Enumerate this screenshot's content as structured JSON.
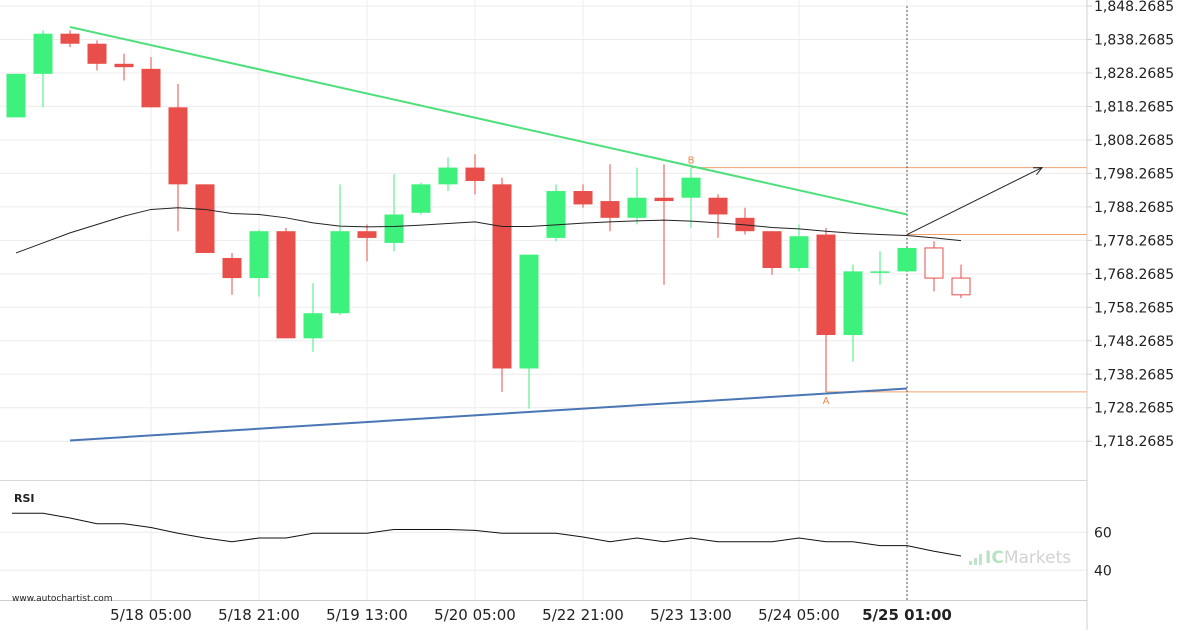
{
  "chart_data": {
    "type": "candlestick",
    "grid": true,
    "price_axis": {
      "range": [
        1710.2685,
        1848.2685
      ],
      "tick_labels": [
        "1,848.2685",
        "1,838.2685",
        "1,828.2685",
        "1,818.2685",
        "1,808.2685",
        "1,798.2685",
        "1,788.2685",
        "1,778.2685",
        "1,768.2685",
        "1,758.2685",
        "1,748.2685",
        "1,738.2685",
        "1,728.2685",
        "1,718.2685"
      ]
    },
    "time_axis": {
      "tick_labels": [
        {
          "label": "5/18 05:00",
          "index": 5
        },
        {
          "label": "5/18 21:00",
          "index": 9
        },
        {
          "label": "5/19 13:00",
          "index": 13
        },
        {
          "label": "5/20 05:00",
          "index": 17
        },
        {
          "label": "5/22 21:00",
          "index": 21
        },
        {
          "label": "5/23 13:00",
          "index": 25
        },
        {
          "label": "5/24 05:00",
          "index": 29
        },
        {
          "label": "5/25 01:00",
          "index": 33,
          "bold": true
        }
      ]
    },
    "current_bar_index": 33,
    "candles": [
      {
        "o": 1815.0,
        "h": 1828.0,
        "l": 1815.0,
        "c": 1828.0,
        "state": "final"
      },
      {
        "o": 1828.0,
        "h": 1841.0,
        "l": 1818.0,
        "c": 1840.0,
        "state": "final"
      },
      {
        "o": 1840.0,
        "h": 1841.0,
        "l": 1836.0,
        "c": 1837.0,
        "state": "final"
      },
      {
        "o": 1837.0,
        "h": 1838.0,
        "l": 1829.0,
        "c": 1831.0,
        "state": "final"
      },
      {
        "o": 1831.0,
        "h": 1834.0,
        "l": 1826.0,
        "c": 1830.0,
        "state": "final"
      },
      {
        "o": 1829.5,
        "h": 1833.0,
        "l": 1818.0,
        "c": 1818.0,
        "state": "final"
      },
      {
        "o": 1818.0,
        "h": 1825.0,
        "l": 1781.0,
        "c": 1795.0,
        "state": "final"
      },
      {
        "o": 1795.0,
        "h": 1795.0,
        "l": 1775.0,
        "c": 1774.5,
        "state": "final"
      },
      {
        "o": 1773.0,
        "h": 1774.5,
        "l": 1762.0,
        "c": 1767.0,
        "state": "final"
      },
      {
        "o": 1767.0,
        "h": 1781.5,
        "l": 1761.5,
        "c": 1781.0,
        "state": "final"
      },
      {
        "o": 1781.0,
        "h": 1782.0,
        "l": 1749.0,
        "c": 1749.0,
        "state": "final"
      },
      {
        "o": 1749.0,
        "h": 1765.5,
        "l": 1745.0,
        "c": 1756.5,
        "state": "final"
      },
      {
        "o": 1756.5,
        "h": 1795.0,
        "l": 1756.0,
        "c": 1781.0,
        "state": "final"
      },
      {
        "o": 1781.0,
        "h": 1783.0,
        "l": 1772.0,
        "c": 1779.0,
        "state": "final"
      },
      {
        "o": 1777.5,
        "h": 1798.0,
        "l": 1775.0,
        "c": 1786.0,
        "state": "final"
      },
      {
        "o": 1786.5,
        "h": 1795.5,
        "l": 1786.0,
        "c": 1795.0,
        "state": "final"
      },
      {
        "o": 1795.0,
        "h": 1803.0,
        "l": 1793.0,
        "c": 1800.0,
        "state": "final"
      },
      {
        "o": 1800.0,
        "h": 1804.0,
        "l": 1792.0,
        "c": 1796.0,
        "state": "final"
      },
      {
        "o": 1795.0,
        "h": 1797.0,
        "l": 1733.0,
        "c": 1740.0,
        "state": "final"
      },
      {
        "o": 1740.0,
        "h": 1774.0,
        "l": 1728.0,
        "c": 1774.0,
        "state": "final"
      },
      {
        "o": 1779.0,
        "h": 1795.0,
        "l": 1778.0,
        "c": 1793.0,
        "state": "final"
      },
      {
        "o": 1793.0,
        "h": 1795.0,
        "l": 1788.0,
        "c": 1789.0,
        "state": "final"
      },
      {
        "o": 1790.0,
        "h": 1801.0,
        "l": 1781.0,
        "c": 1785.0,
        "state": "final"
      },
      {
        "o": 1785.0,
        "h": 1800.0,
        "l": 1783.0,
        "c": 1791.0,
        "state": "final"
      },
      {
        "o": 1791.0,
        "h": 1801.0,
        "l": 1765.0,
        "c": 1790.0,
        "state": "final"
      },
      {
        "o": 1791.0,
        "h": 1800.0,
        "l": 1782.0,
        "c": 1797.0,
        "state": "final"
      },
      {
        "o": 1791.0,
        "h": 1792.0,
        "l": 1779.0,
        "c": 1786.0,
        "state": "final"
      },
      {
        "o": 1785.0,
        "h": 1788.0,
        "l": 1780.0,
        "c": 1781.0,
        "state": "final"
      },
      {
        "o": 1781.0,
        "h": 1781.0,
        "l": 1768.0,
        "c": 1770.0,
        "state": "final"
      },
      {
        "o": 1770.0,
        "h": 1783.0,
        "l": 1769.0,
        "c": 1779.5,
        "state": "final"
      },
      {
        "o": 1780.0,
        "h": 1782.0,
        "l": 1733.0,
        "c": 1750.0,
        "state": "final"
      },
      {
        "o": 1750.0,
        "h": 1771.0,
        "l": 1742.0,
        "c": 1769.0,
        "state": "final"
      },
      {
        "o": 1769.0,
        "h": 1775.0,
        "l": 1765.0,
        "c": 1769.0,
        "state": "final"
      },
      {
        "o": 1769.0,
        "h": 1776.0,
        "l": 1769.0,
        "c": 1776.0,
        "state": "final"
      },
      {
        "o": 1776.0,
        "h": 1778.0,
        "l": 1763.0,
        "c": 1767.0,
        "state": "projected"
      },
      {
        "o": 1767.0,
        "h": 1771.0,
        "l": 1761.0,
        "c": 1762.0,
        "state": "projected"
      }
    ],
    "moving_average": [
      {
        "i": 0,
        "v": 1774.5
      },
      {
        "i": 1,
        "v": 1777.5
      },
      {
        "i": 2,
        "v": 1780.5
      },
      {
        "i": 3,
        "v": 1783.0
      },
      {
        "i": 4,
        "v": 1785.5
      },
      {
        "i": 5,
        "v": 1787.5
      },
      {
        "i": 6,
        "v": 1788.0
      },
      {
        "i": 7,
        "v": 1787.5
      },
      {
        "i": 8,
        "v": 1786.3
      },
      {
        "i": 9,
        "v": 1786.0
      },
      {
        "i": 10,
        "v": 1785.0
      },
      {
        "i": 11,
        "v": 1783.5
      },
      {
        "i": 12,
        "v": 1782.5
      },
      {
        "i": 13,
        "v": 1782.3
      },
      {
        "i": 14,
        "v": 1782.4
      },
      {
        "i": 15,
        "v": 1782.8
      },
      {
        "i": 16,
        "v": 1783.3
      },
      {
        "i": 17,
        "v": 1783.8
      },
      {
        "i": 18,
        "v": 1782.4
      },
      {
        "i": 19,
        "v": 1782.4
      },
      {
        "i": 20,
        "v": 1782.9
      },
      {
        "i": 21,
        "v": 1783.4
      },
      {
        "i": 22,
        "v": 1783.8
      },
      {
        "i": 23,
        "v": 1784.1
      },
      {
        "i": 24,
        "v": 1784.3
      },
      {
        "i": 25,
        "v": 1784.0
      },
      {
        "i": 26,
        "v": 1783.5
      },
      {
        "i": 27,
        "v": 1782.9
      },
      {
        "i": 28,
        "v": 1782.1
      },
      {
        "i": 29,
        "v": 1781.7
      },
      {
        "i": 30,
        "v": 1781.0
      },
      {
        "i": 31,
        "v": 1780.4
      },
      {
        "i": 32,
        "v": 1780.0
      },
      {
        "i": 33,
        "v": 1779.7
      },
      {
        "i": 34,
        "v": 1779.0
      },
      {
        "i": 35,
        "v": 1778.2
      }
    ],
    "trendlines": [
      {
        "name": "resistance",
        "color": "#4de07a",
        "from": {
          "i": 2,
          "v": 1842.0
        },
        "to": {
          "i": 33,
          "v": 1786.0
        }
      },
      {
        "name": "support",
        "color": "#4a76b4",
        "from": {
          "i": 2,
          "v": 1718.5
        },
        "to": {
          "i": 33,
          "v": 1734.0
        }
      }
    ],
    "levels": [
      {
        "name": "B",
        "v": 1800.0,
        "from_i": 25
      },
      {
        "name": "",
        "v": 1780.0,
        "from_i": 33
      },
      {
        "name": "A",
        "v": 1733.0,
        "from_i": 30
      }
    ],
    "point_labels": [
      {
        "text": "B",
        "i": 25,
        "v": 1800.0,
        "position": "above"
      },
      {
        "text": "A",
        "i": 30,
        "v": 1733.0,
        "position": "below"
      }
    ],
    "projection_arrow": {
      "from": {
        "i": 33,
        "v": 1780.0
      },
      "to": {
        "i": 38,
        "v": 1800.0
      }
    },
    "rsi": {
      "label": "RSI",
      "range": [
        27,
        77
      ],
      "tick_labels": [
        {
          "label": "60",
          "v": 60
        },
        {
          "label": "40",
          "v": 40
        }
      ],
      "values": [
        70,
        70,
        67.5,
        64.5,
        64.5,
        62.5,
        59.5,
        57,
        55,
        57,
        57,
        59.5,
        59.5,
        59.5,
        61.5,
        61.5,
        61.5,
        61,
        59.5,
        59.5,
        59.5,
        57.5,
        55,
        57,
        55,
        57,
        55,
        55,
        55,
        57,
        55,
        55,
        53,
        53,
        50,
        47.5
      ]
    },
    "colors": {
      "bull": "#3ef07c",
      "bear": "#e84e4a",
      "level": "#f0a070",
      "point_label": "#e8884a",
      "ma": "#222222",
      "arrow": "#222222",
      "grid": "#ececec",
      "axis": "#cfcfcf"
    }
  },
  "watermark": {
    "brand_prefix": "IC",
    "brand_suffix": "Markets"
  },
  "footer": {
    "source": "www.autochartist.com"
  }
}
